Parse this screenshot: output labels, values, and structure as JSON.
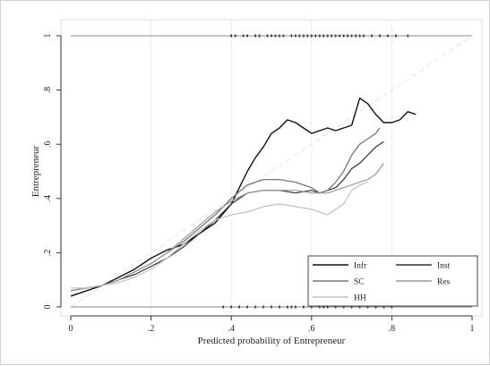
{
  "chart_data": {
    "type": "line",
    "title": "",
    "xlabel": "Predicted probability of Entrepreneur",
    "ylabel": "Entrepreneur",
    "xlim": [
      0,
      1
    ],
    "ylim": [
      0,
      1
    ],
    "grid": "vertical",
    "x_ticks": [
      {
        "value": 0,
        "label": "0"
      },
      {
        "value": 0.2,
        "label": ".2"
      },
      {
        "value": 0.4,
        "label": ".4"
      },
      {
        "value": 0.6,
        "label": ".6"
      },
      {
        "value": 0.8,
        "label": ".8"
      },
      {
        "value": 1,
        "label": "1"
      }
    ],
    "y_ticks": [
      {
        "value": 0,
        "label": "0"
      },
      {
        "value": 0.2,
        "label": ".2"
      },
      {
        "value": 0.4,
        "label": ".4"
      },
      {
        "value": 0.6,
        "label": ".6"
      },
      {
        "value": 0.8,
        "label": ".8"
      },
      {
        "value": 1,
        "label": "1"
      }
    ],
    "reference_line": {
      "x": [
        0,
        1
      ],
      "y": [
        0,
        1
      ],
      "style": "dashed",
      "color": "#e4e4e4"
    },
    "legend_position": "bottom-right",
    "series": [
      {
        "name": "Infr",
        "color": "#111111",
        "width": 1.4,
        "x": [
          0.0,
          0.04,
          0.08,
          0.12,
          0.16,
          0.2,
          0.24,
          0.28,
          0.32,
          0.36,
          0.4,
          0.42,
          0.44,
          0.46,
          0.48,
          0.5,
          0.52,
          0.54,
          0.56,
          0.58,
          0.6,
          0.62,
          0.64,
          0.66,
          0.68,
          0.7,
          0.72,
          0.74,
          0.76,
          0.78,
          0.8,
          0.82,
          0.84,
          0.86
        ],
        "y": [
          0.04,
          0.06,
          0.08,
          0.11,
          0.14,
          0.18,
          0.21,
          0.23,
          0.27,
          0.31,
          0.38,
          0.44,
          0.5,
          0.55,
          0.59,
          0.64,
          0.66,
          0.69,
          0.68,
          0.66,
          0.64,
          0.65,
          0.66,
          0.65,
          0.66,
          0.67,
          0.77,
          0.75,
          0.71,
          0.68,
          0.68,
          0.69,
          0.72,
          0.71
        ]
      },
      {
        "name": "Inst",
        "color": "#333333",
        "width": 1.2,
        "x": [
          0.0,
          0.04,
          0.08,
          0.12,
          0.16,
          0.2,
          0.24,
          0.28,
          0.32,
          0.36,
          0.4,
          0.44,
          0.48,
          0.52,
          0.56,
          0.6,
          0.62,
          0.64,
          0.66,
          0.68,
          0.7,
          0.72,
          0.74,
          0.76,
          0.78
        ],
        "y": [
          0.06,
          0.07,
          0.08,
          0.1,
          0.12,
          0.15,
          0.18,
          0.22,
          0.27,
          0.32,
          0.38,
          0.42,
          0.43,
          0.43,
          0.42,
          0.43,
          0.42,
          0.43,
          0.44,
          0.47,
          0.51,
          0.53,
          0.56,
          0.59,
          0.61
        ]
      },
      {
        "name": "SC",
        "color": "#777777",
        "width": 1.3,
        "x": [
          0.0,
          0.04,
          0.08,
          0.12,
          0.16,
          0.2,
          0.24,
          0.28,
          0.32,
          0.36,
          0.4,
          0.44,
          0.48,
          0.52,
          0.56,
          0.6,
          0.62,
          0.64,
          0.66,
          0.68,
          0.7,
          0.72,
          0.74,
          0.76,
          0.77
        ],
        "y": [
          0.06,
          0.07,
          0.08,
          0.1,
          0.13,
          0.16,
          0.2,
          0.24,
          0.29,
          0.34,
          0.4,
          0.45,
          0.47,
          0.47,
          0.46,
          0.44,
          0.42,
          0.43,
          0.46,
          0.5,
          0.56,
          0.6,
          0.62,
          0.64,
          0.66
        ]
      },
      {
        "name": "Res",
        "color": "#999999",
        "width": 1.2,
        "x": [
          0.0,
          0.04,
          0.08,
          0.12,
          0.16,
          0.2,
          0.24,
          0.28,
          0.32,
          0.36,
          0.4,
          0.44,
          0.48,
          0.52,
          0.56,
          0.6,
          0.64,
          0.68,
          0.72,
          0.74,
          0.76,
          0.78
        ],
        "y": [
          0.06,
          0.07,
          0.08,
          0.1,
          0.13,
          0.16,
          0.2,
          0.25,
          0.3,
          0.35,
          0.39,
          0.42,
          0.43,
          0.43,
          0.43,
          0.42,
          0.42,
          0.44,
          0.46,
          0.47,
          0.49,
          0.53
        ]
      },
      {
        "name": "HH",
        "color": "#c0c0c0",
        "width": 1.2,
        "x": [
          0.0,
          0.04,
          0.08,
          0.12,
          0.16,
          0.2,
          0.24,
          0.28,
          0.32,
          0.36,
          0.4,
          0.44,
          0.48,
          0.52,
          0.56,
          0.6,
          0.62,
          0.64,
          0.66,
          0.68,
          0.7,
          0.72,
          0.74
        ],
        "y": [
          0.07,
          0.07,
          0.08,
          0.09,
          0.11,
          0.14,
          0.18,
          0.23,
          0.28,
          0.32,
          0.34,
          0.35,
          0.37,
          0.38,
          0.37,
          0.36,
          0.35,
          0.34,
          0.36,
          0.38,
          0.43,
          0.45,
          0.46
        ]
      }
    ],
    "rug": {
      "color": "#333333",
      "top_y": 1,
      "top_x": [
        0.4,
        0.41,
        0.43,
        0.44,
        0.46,
        0.47,
        0.49,
        0.5,
        0.51,
        0.52,
        0.53,
        0.55,
        0.56,
        0.57,
        0.58,
        0.59,
        0.6,
        0.61,
        0.62,
        0.63,
        0.64,
        0.65,
        0.66,
        0.67,
        0.68,
        0.69,
        0.7,
        0.71,
        0.72,
        0.73,
        0.75,
        0.77,
        0.79,
        0.81,
        0.84
      ],
      "bottom_y": 0,
      "bottom_x": [
        0.38,
        0.4,
        0.42,
        0.44,
        0.46,
        0.48,
        0.5,
        0.52,
        0.54,
        0.55,
        0.56,
        0.58,
        0.6,
        0.62,
        0.63,
        0.64,
        0.66,
        0.68,
        0.7,
        0.72,
        0.74,
        0.76,
        0.78,
        0.8
      ]
    }
  }
}
